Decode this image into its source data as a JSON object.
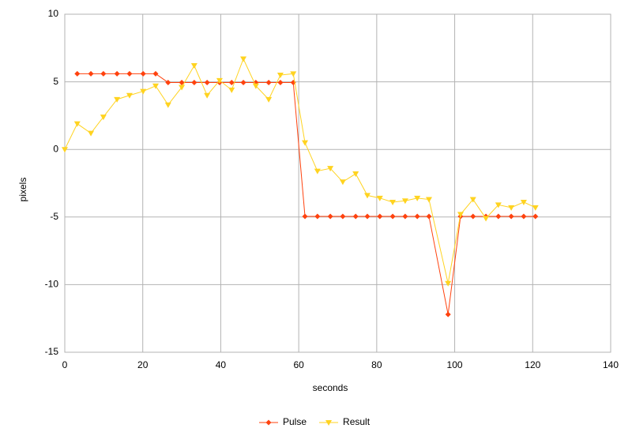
{
  "chart_data": {
    "type": "line",
    "xlabel": "seconds",
    "ylabel": "pixels",
    "x": [
      0,
      3.2,
      6.7,
      9.9,
      13.4,
      16.6,
      20.1,
      23.3,
      26.5,
      30.0,
      33.2,
      36.5,
      39.7,
      42.8,
      45.8,
      49.0,
      52.3,
      55.3,
      58.6,
      61.6,
      64.8,
      68.1,
      71.3,
      74.6,
      77.6,
      80.8,
      84.1,
      87.3,
      90.4,
      93.4,
      98.3,
      101.5,
      104.7,
      108.0,
      111.2,
      114.5,
      117.7,
      120.7
    ],
    "series": [
      {
        "name": "Pulse",
        "color": "#ff420e",
        "marker": "diamond",
        "values": [
          null,
          5.6,
          5.6,
          5.6,
          5.6,
          5.6,
          5.6,
          5.6,
          4.95,
          4.95,
          4.95,
          4.95,
          4.95,
          4.95,
          4.95,
          4.95,
          4.95,
          4.95,
          4.95,
          -4.95,
          -4.95,
          -4.95,
          -4.95,
          -4.95,
          -4.95,
          -4.95,
          -4.95,
          -4.95,
          -4.95,
          -4.95,
          -12.2,
          -4.95,
          -4.95,
          -4.95,
          -4.95,
          -4.95,
          -4.95,
          -4.95
        ]
      },
      {
        "name": "Result",
        "color": "#ffd320",
        "marker": "triangle-down",
        "values": [
          0,
          1.9,
          1.2,
          2.4,
          3.7,
          4.0,
          4.3,
          4.7,
          3.3,
          4.6,
          6.2,
          4.0,
          5.1,
          4.4,
          6.7,
          4.7,
          3.7,
          5.5,
          5.6,
          0.5,
          -1.6,
          -1.4,
          -2.4,
          -1.8,
          -3.4,
          -3.6,
          -3.9,
          -3.8,
          -3.6,
          -3.7,
          -9.9,
          -4.8,
          -3.7,
          -5.1,
          -4.1,
          -4.3,
          -3.9,
          -4.3
        ]
      }
    ],
    "xlim": [
      0,
      140
    ],
    "xticks": [
      0,
      20,
      40,
      60,
      80,
      100,
      120,
      140
    ],
    "ylim": [
      -15,
      10
    ],
    "yticks": [
      -15,
      -10,
      -5,
      0,
      5,
      10
    ],
    "grid": true,
    "legend": "bottom"
  }
}
